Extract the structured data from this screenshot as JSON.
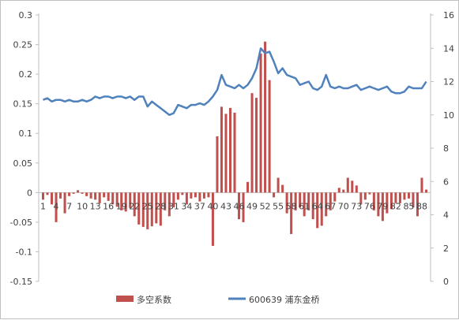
{
  "chart_data": {
    "type": "bar+line",
    "title": "",
    "xlabel": "",
    "x_tick_labels": [
      "1",
      "4",
      "7",
      "10",
      "13",
      "16",
      "19",
      "22",
      "25",
      "28",
      "31",
      "34",
      "37",
      "40",
      "43",
      "46",
      "49",
      "52",
      "55",
      "58",
      "61",
      "64",
      "67",
      "70",
      "73",
      "76",
      "79",
      "82",
      "85",
      "88"
    ],
    "x": [
      1,
      2,
      3,
      4,
      5,
      6,
      7,
      8,
      9,
      10,
      11,
      12,
      13,
      14,
      15,
      16,
      17,
      18,
      19,
      20,
      21,
      22,
      23,
      24,
      25,
      26,
      27,
      28,
      29,
      30,
      31,
      32,
      33,
      34,
      35,
      36,
      37,
      38,
      39,
      40,
      41,
      42,
      43,
      44,
      45,
      46,
      47,
      48,
      49,
      50,
      51,
      52,
      53,
      54,
      55,
      56,
      57,
      58,
      59,
      60,
      61,
      62,
      63,
      64,
      65,
      66,
      67,
      68,
      69,
      70,
      71,
      72,
      73,
      74,
      75,
      76,
      77,
      78,
      79,
      80,
      81,
      82,
      83,
      84,
      85,
      86,
      87,
      88,
      89
    ],
    "left_axis": {
      "ylim": [
        -0.15,
        0.3
      ],
      "ticks": [
        "-0.15",
        "-0.1",
        "-0.05",
        "0",
        "0.05",
        "0.1",
        "0.15",
        "0.2",
        "0.25",
        "0.3"
      ]
    },
    "right_axis": {
      "ylim": [
        0,
        16
      ],
      "ticks": [
        "0",
        "2",
        "4",
        "6",
        "8",
        "10",
        "12",
        "14",
        "16"
      ]
    },
    "grid": false,
    "legend_position": "bottom",
    "series": [
      {
        "name": "多空系数",
        "type": "bar",
        "axis": "left",
        "color": "#c0504d",
        "values": [
          -0.012,
          -0.004,
          -0.02,
          -0.05,
          -0.01,
          -0.035,
          -0.006,
          -0.002,
          0.004,
          -0.002,
          -0.006,
          -0.01,
          -0.012,
          -0.018,
          -0.008,
          -0.014,
          -0.02,
          -0.024,
          -0.03,
          -0.032,
          -0.026,
          -0.04,
          -0.054,
          -0.058,
          -0.062,
          -0.057,
          -0.052,
          -0.056,
          -0.03,
          -0.04,
          -0.025,
          -0.012,
          -0.004,
          -0.02,
          -0.01,
          -0.008,
          -0.015,
          -0.01,
          -0.008,
          -0.09,
          0.095,
          0.145,
          0.133,
          0.143,
          0.135,
          -0.045,
          -0.05,
          0.018,
          0.168,
          0.16,
          0.235,
          0.255,
          0.19,
          -0.008,
          0.025,
          0.013,
          -0.035,
          -0.07,
          -0.03,
          -0.025,
          -0.04,
          -0.03,
          -0.045,
          -0.06,
          -0.056,
          -0.04,
          -0.03,
          -0.015,
          0.008,
          0.005,
          0.025,
          0.02,
          0.012,
          -0.02,
          -0.012,
          -0.003,
          -0.03,
          -0.04,
          -0.048,
          -0.035,
          -0.028,
          -0.018,
          -0.018,
          -0.012,
          -0.01,
          -0.025,
          -0.04,
          0.025,
          0.005
        ]
      },
      {
        "name": "600639 浦东金桥",
        "type": "line",
        "axis": "right",
        "color": "#4f81bd",
        "values": [
          10.9,
          11.0,
          10.8,
          10.9,
          10.9,
          10.8,
          10.9,
          10.8,
          10.8,
          10.9,
          10.8,
          10.9,
          11.1,
          11.0,
          11.1,
          11.1,
          11.0,
          11.1,
          11.1,
          11.0,
          11.1,
          10.9,
          11.1,
          11.1,
          10.5,
          10.8,
          10.6,
          10.4,
          10.2,
          10.0,
          10.1,
          10.6,
          10.5,
          10.4,
          10.6,
          10.6,
          10.7,
          10.6,
          10.8,
          11.1,
          11.5,
          12.4,
          11.8,
          11.7,
          11.6,
          11.8,
          11.6,
          11.8,
          12.2,
          12.8,
          14.0,
          13.7,
          13.8,
          13.2,
          12.5,
          12.8,
          12.4,
          12.3,
          12.2,
          11.8,
          11.9,
          12.0,
          11.6,
          11.5,
          11.7,
          12.4,
          11.7,
          11.6,
          11.7,
          11.6,
          11.6,
          11.7,
          11.8,
          11.5,
          11.6,
          11.7,
          11.6,
          11.5,
          11.6,
          11.7,
          11.4,
          11.3,
          11.3,
          11.4,
          11.7,
          11.6,
          11.6,
          11.6,
          12.0
        ]
      }
    ]
  }
}
